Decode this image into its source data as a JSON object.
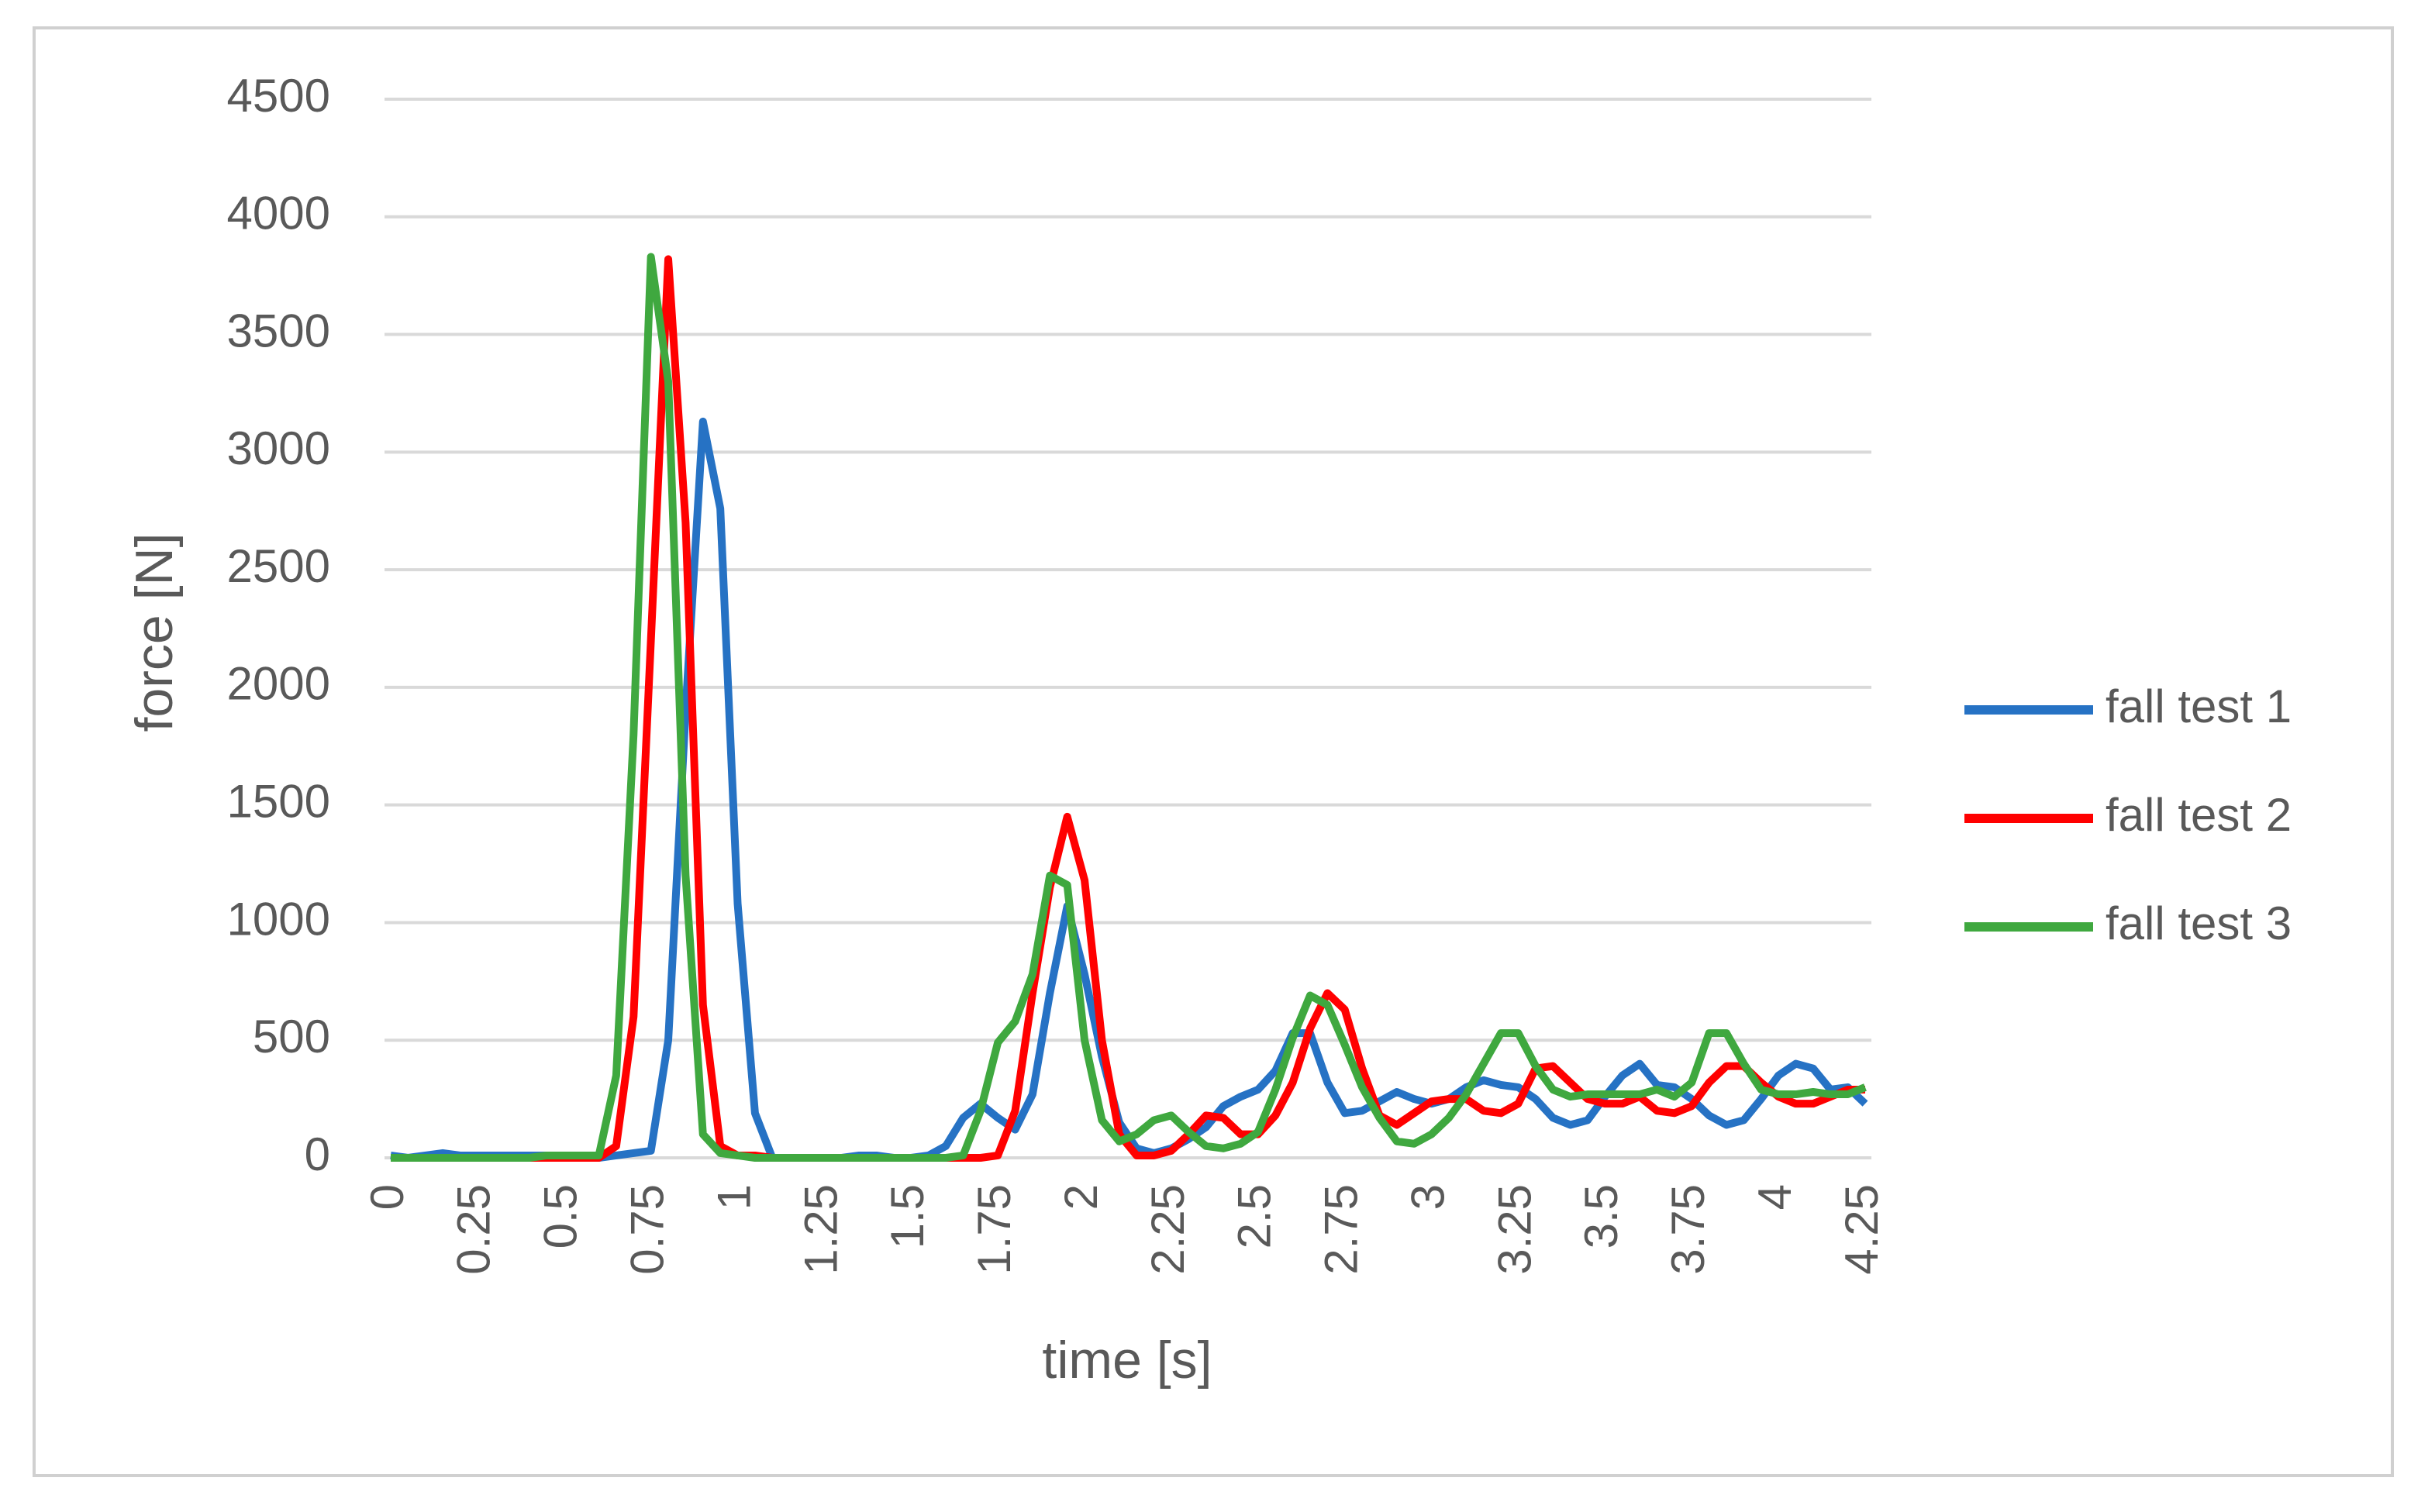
{
  "chart_data": {
    "type": "line",
    "x_label": "time [s]",
    "y_label": "force [N]",
    "x": [
      0,
      0.05,
      0.1,
      0.15,
      0.2,
      0.25,
      0.3,
      0.35,
      0.4,
      0.45,
      0.5,
      0.55,
      0.6,
      0.65,
      0.7,
      0.75,
      0.8,
      0.85,
      0.9,
      0.95,
      1,
      1.05,
      1.1,
      1.15,
      1.2,
      1.25,
      1.3,
      1.35,
      1.4,
      1.45,
      1.5,
      1.55,
      1.6,
      1.65,
      1.7,
      1.75,
      1.8,
      1.85,
      1.9,
      1.95,
      2,
      2.05,
      2.1,
      2.15,
      2.2,
      2.25,
      2.3,
      2.35,
      2.4,
      2.45,
      2.5,
      2.55,
      2.6,
      2.65,
      2.7,
      2.75,
      2.8,
      2.85,
      2.9,
      2.95,
      3,
      3.05,
      3.1,
      3.15,
      3.2,
      3.25,
      3.3,
      3.35,
      3.4,
      3.45,
      3.5,
      3.55,
      3.6,
      3.65,
      3.7,
      3.75,
      3.8,
      3.85,
      3.9,
      3.95,
      4,
      4.05,
      4.1,
      4.15,
      4.2,
      4.25
    ],
    "series": [
      {
        "name": "fall test 1",
        "color": "#2672c4",
        "values": [
          10,
          0,
          10,
          20,
          10,
          10,
          10,
          10,
          10,
          10,
          10,
          10,
          0,
          10,
          20,
          30,
          500,
          1900,
          3130,
          2760,
          1080,
          190,
          0,
          0,
          0,
          0,
          0,
          10,
          10,
          0,
          0,
          10,
          50,
          170,
          230,
          170,
          120,
          270,
          700,
          1070,
          780,
          430,
          150,
          40,
          20,
          40,
          80,
          130,
          220,
          260,
          290,
          370,
          530,
          530,
          320,
          190,
          200,
          240,
          280,
          250,
          230,
          250,
          300,
          330,
          310,
          300,
          250,
          170,
          140,
          160,
          260,
          350,
          400,
          310,
          300,
          250,
          180,
          140,
          160,
          250,
          350,
          400,
          380,
          290,
          300,
          230
        ]
      },
      {
        "name": "fall test 2",
        "color": "#ff0000",
        "values": [
          0,
          0,
          0,
          0,
          0,
          0,
          0,
          0,
          0,
          0,
          0,
          0,
          0,
          50,
          600,
          2200,
          3820,
          2700,
          650,
          50,
          10,
          10,
          0,
          0,
          0,
          0,
          0,
          0,
          0,
          0,
          0,
          0,
          0,
          0,
          0,
          10,
          200,
          700,
          1150,
          1450,
          1180,
          500,
          100,
          10,
          10,
          30,
          100,
          180,
          170,
          100,
          100,
          180,
          320,
          550,
          700,
          630,
          380,
          180,
          140,
          190,
          240,
          250,
          250,
          200,
          190,
          230,
          380,
          390,
          320,
          250,
          230,
          230,
          260,
          200,
          190,
          220,
          320,
          390,
          390,
          320,
          260,
          230,
          230,
          260,
          290,
          290
        ]
      },
      {
        "name": "fall test 3",
        "color": "#3fa83f",
        "values": [
          0,
          0,
          0,
          0,
          0,
          0,
          0,
          0,
          0,
          10,
          10,
          10,
          10,
          350,
          1800,
          3830,
          3300,
          1200,
          100,
          20,
          10,
          0,
          0,
          0,
          0,
          0,
          0,
          0,
          0,
          0,
          0,
          0,
          0,
          10,
          200,
          490,
          580,
          780,
          1200,
          1160,
          500,
          160,
          70,
          100,
          160,
          180,
          110,
          50,
          40,
          60,
          110,
          290,
          510,
          690,
          650,
          480,
          300,
          170,
          70,
          60,
          100,
          170,
          270,
          400,
          530,
          530,
          390,
          290,
          260,
          270,
          270,
          270,
          270,
          290,
          260,
          320,
          530,
          530,
          400,
          290,
          270,
          270,
          280,
          270,
          270,
          300
        ]
      }
    ],
    "xlim": [
      0,
      4.25
    ],
    "xticks": [
      0,
      0.25,
      0.5,
      0.75,
      1,
      1.25,
      1.5,
      1.75,
      2,
      2.25,
      2.5,
      2.75,
      3,
      3.25,
      3.5,
      3.75,
      4,
      4.25
    ],
    "ylim": [
      0,
      4500
    ],
    "yticks": [
      0,
      500,
      1000,
      1500,
      2000,
      2500,
      3000,
      3500,
      4000,
      4500
    ],
    "grid": true,
    "legend": "right"
  }
}
